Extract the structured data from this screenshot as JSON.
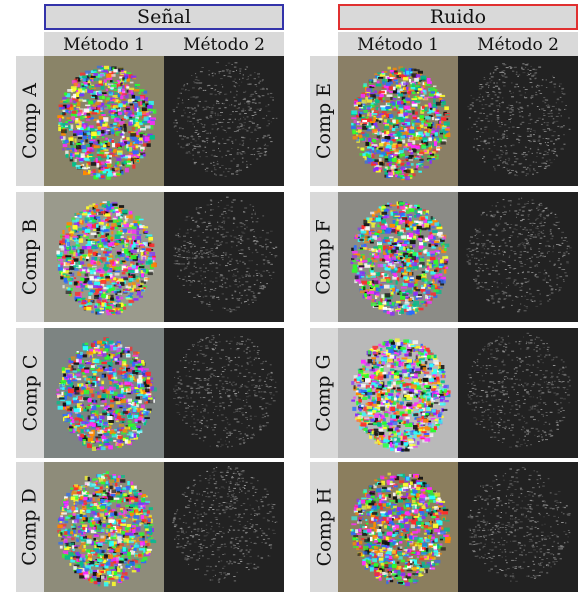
{
  "groups": [
    {
      "title": "Señal",
      "methods": [
        "Método 1",
        "Método 2"
      ],
      "rows": [
        "Comp A",
        "Comp B",
        "Comp C",
        "Comp D"
      ]
    },
    {
      "title": "Ruido",
      "methods": [
        "Método 1",
        "Método 2"
      ],
      "rows": [
        "Comp E",
        "Comp F",
        "Comp G",
        "Comp H"
      ]
    }
  ],
  "colors": {
    "signal_border": "#3333aa",
    "noise_border": "#e03030",
    "label_bg": "#d9d9d9",
    "method2_bg": "#222222"
  }
}
